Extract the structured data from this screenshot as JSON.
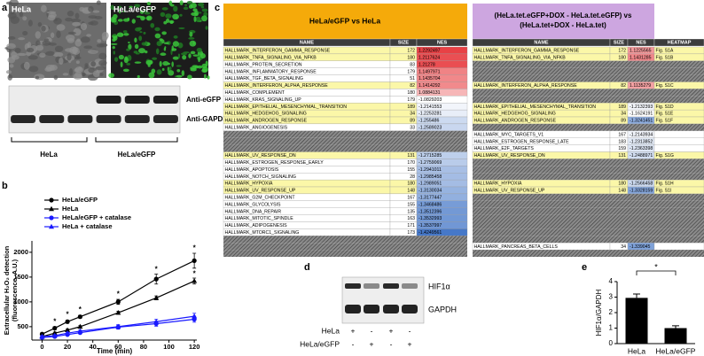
{
  "panel_a": {
    "label": "a",
    "image_labels": [
      "HeLa",
      "HeLa/eGFP"
    ],
    "blot_labels": [
      "Anti-eGFP",
      "Anti-GAPDH"
    ],
    "group_labels": [
      "HeLa",
      "HeLa/eGFP"
    ]
  },
  "chart_data": [
    {
      "type": "line",
      "label": "b",
      "xlabel": "Time (min)",
      "ylabel": [
        "Extracellular H₂O₂ detection",
        "(fluorescence, A.U.)"
      ],
      "x": [
        0,
        10,
        20,
        30,
        60,
        90,
        120
      ],
      "xlim": [
        -8,
        122
      ],
      "xticks": [
        0,
        20,
        40,
        60,
        80,
        100,
        120
      ],
      "ylim": [
        230,
        2230
      ],
      "yticks": [
        500,
        1000,
        1500,
        2000
      ],
      "series": [
        {
          "name": "HeLa/eGFP",
          "color": "#000000",
          "marker": "circle",
          "values": [
            350,
            470,
            600,
            700,
            1000,
            1460,
            1830
          ],
          "errors": [
            30,
            30,
            30,
            30,
            50,
            100,
            150
          ]
        },
        {
          "name": "HeLa",
          "color": "#000000",
          "marker": "triangle",
          "values": [
            300,
            370,
            430,
            500,
            780,
            1080,
            1420
          ],
          "errors": [
            20,
            20,
            20,
            20,
            30,
            40,
            60
          ]
        },
        {
          "name": "HeLa/eGFP + catalase",
          "color": "#1a1aff",
          "marker": "circle",
          "values": [
            280,
            300,
            340,
            380,
            490,
            560,
            650
          ],
          "errors": [
            20,
            20,
            20,
            20,
            40,
            50,
            60
          ]
        },
        {
          "name": "HeLa + catalase",
          "color": "#1a1aff",
          "marker": "triangle",
          "values": [
            300,
            320,
            370,
            410,
            500,
            600,
            710
          ],
          "errors": [
            20,
            20,
            20,
            20,
            40,
            50,
            60
          ]
        }
      ],
      "annotations": [
        {
          "text": "*",
          "x": 10,
          "y": 600
        },
        {
          "text": "*",
          "x": 20,
          "y": 740
        },
        {
          "text": "*",
          "x": 30,
          "y": 840
        },
        {
          "text": "*",
          "x": 60,
          "y": 1150
        },
        {
          "text": "*",
          "x": 90,
          "y": 1650
        },
        {
          "text": "*",
          "x": 120,
          "y": 2080
        },
        {
          "text": "*",
          "x": 120,
          "y": 1560
        }
      ]
    },
    {
      "type": "bar",
      "label": "e",
      "categories": [
        "HeLa",
        "HeLa/eGFP"
      ],
      "values": [
        2.95,
        1.0
      ],
      "errors": [
        0.25,
        0.15
      ],
      "color": "#000000",
      "ylim": [
        0,
        4
      ],
      "yticks": [
        0,
        1,
        2,
        3,
        4
      ],
      "ylabel": "HIF1α/GAPDH",
      "annotation": "*"
    }
  ],
  "panel_c": {
    "label": "c",
    "left": {
      "title": "HeLa/eGFP vs HeLa",
      "columns": [
        "NAME",
        "SIZE",
        "NES"
      ]
    },
    "right": {
      "title_lines": [
        "(HeLa.tet.eGFP+DOX - HeLa.tet.eGFP) vs",
        "(HeLa.tet+DOX - HeLa.tet)"
      ],
      "columns": [
        "NAME",
        "SIZE",
        "NES",
        "HEATMAP"
      ]
    },
    "rows": [
      {
        "left": [
          "HALLMARK_INTERFERON_GAMMA_RESPONSE",
          172,
          1.2292497
        ],
        "right": [
          "HALLMARK_INTERFERON_GAMMA_RESPONSE",
          172,
          1.1225565,
          "Fig. S1A"
        ]
      },
      {
        "left": [
          "HALLMARK_TNFA_SIGNALING_VIA_NFKB",
          180,
          1.2117624
        ],
        "right": [
          "HALLMARK_TNFA_SIGNALING_VIA_NFKB",
          180,
          1.1431285,
          "Fig. S1B"
        ]
      },
      {
        "left": [
          "HALLMARK_PROTEIN_SECRETION",
          83,
          1.21278
        ],
        "right": null
      },
      {
        "left": [
          "HALLMARK_INFLAMMATORY_RESPONSE",
          179,
          1.1497971
        ],
        "right": null
      },
      {
        "left": [
          "HALLMARK_TGF_BETA_SIGNALING",
          51,
          1.1435704
        ],
        "right": null
      },
      {
        "left": [
          "HALLMARK_INTERFERON_ALPHA_RESPONSE",
          82,
          1.1414292
        ],
        "right": [
          "HALLMARK_INTERFERON_ALPHA_RESPONSE",
          82,
          1.1135279,
          "Fig. S1C"
        ]
      },
      {
        "left": [
          "HALLMARK_COMPLEMENT",
          180,
          1.0884131
        ],
        "right": null
      },
      {
        "left": [
          "HALLMARK_KRAS_SIGNALING_UP",
          179,
          -1.0829203
        ],
        "right": null
      },
      {
        "left": [
          "HALLMARK_EPITHELIAL_MESENCHYMAL_TRANSITION",
          189,
          -1.2141553
        ],
        "right": [
          "HALLMARK_EPITHELIAL_MESENCHYMAL_TRANSITION",
          189,
          -1.2132393,
          "Fig. S1D"
        ]
      },
      {
        "left": [
          "HALLMARK_HEDGEHOG_SIGNALING",
          34,
          -1.2253281
        ],
        "right": [
          "HALLMARK_HEDGEHOG_SIGNALING",
          34,
          -1.1624191,
          "Fig. S1E"
        ]
      },
      {
        "left": [
          "HALLMARK_ANDROGEN_RESPONSE",
          89,
          -1.255486
        ],
        "right": [
          "HALLMARK_ANDROGEN_RESPONSE",
          89,
          -1.3241451,
          "Fig. S1F"
        ]
      },
      {
        "left": [
          "HALLMARK_ANGIOGENESIS",
          33,
          -1.2589023
        ],
        "right": null
      },
      {
        "left": null,
        "right": [
          "HALLMARK_MYC_TARGETS_V1",
          167,
          -1.2143934
        ]
      },
      {
        "left": null,
        "right": [
          "HALLMARK_ESTROGEN_RESPONSE_LATE",
          183,
          -1.2313852
        ]
      },
      {
        "left": null,
        "right": [
          "HALLMARK_E2F_TARGETS",
          159,
          -1.2363398
        ]
      },
      {
        "left": [
          "HALLMARK_UV_RESPONSE_DN",
          131,
          -1.2715285
        ],
        "right": [
          "HALLMARK_UV_RESPONSE_DN",
          131,
          -1.2488971,
          "Fig. S1G"
        ]
      },
      {
        "left": [
          "HALLMARK_ESTROGEN_RESPONSE_EARLY",
          170,
          -1.2759069
        ],
        "right": null
      },
      {
        "left": [
          "HALLMARK_APOPTOSIS",
          155,
          -1.2941011
        ],
        "right": null
      },
      {
        "left": [
          "HALLMARK_NOTCH_SIGNALING",
          28,
          -1.2985458
        ],
        "right": null
      },
      {
        "left": [
          "HALLMARK_HYPOXIA",
          180,
          -1.2989051
        ],
        "right": [
          "HALLMARK_HYPOXIA",
          180,
          -1.2566458,
          "Fig. S1H"
        ]
      },
      {
        "left": [
          "HALLMARK_UV_RESPONSE_UP",
          148,
          -1.3130034
        ],
        "right": [
          "HALLMARK_UV_RESPONSE_UP",
          148,
          -1.3328159,
          "Fig. S1I"
        ]
      },
      {
        "left": [
          "HALLMARK_G2M_CHECKPOINT",
          167,
          -1.3177447
        ],
        "right": null
      },
      {
        "left": [
          "HALLMARK_GLYCOLYSIS",
          155,
          -1.3468486
        ],
        "right": null
      },
      {
        "left": [
          "HALLMARK_DNA_REPAIR",
          135,
          -1.3512396
        ],
        "right": null
      },
      {
        "left": [
          "HALLMARK_MITOTIC_SPINDLE",
          163,
          -1.3532993
        ],
        "right": null
      },
      {
        "left": [
          "HALLMARK_ADIPOGENESIS",
          171,
          -1.3537997
        ],
        "right": null
      },
      {
        "left": [
          "HALLMARK_MTORC1_SIGNALING",
          173,
          -1.4249561
        ],
        "right": null
      },
      {
        "left": null,
        "right": null
      },
      {
        "left": null,
        "right": [
          "HALLMARK_PANCREAS_BETA_CELLS",
          34,
          -1.339045
        ]
      },
      {
        "left": null,
        "right": null
      }
    ]
  },
  "panel_d": {
    "label": "d",
    "blot_labels": [
      "HIF1α",
      "GAPDH"
    ],
    "conditions": [
      {
        "name": "HeLa",
        "signs": [
          "+",
          "-",
          "+",
          "-"
        ]
      },
      {
        "name": "HeLa/eGFP",
        "signs": [
          "-",
          "+",
          "-",
          "+"
        ]
      }
    ]
  }
}
